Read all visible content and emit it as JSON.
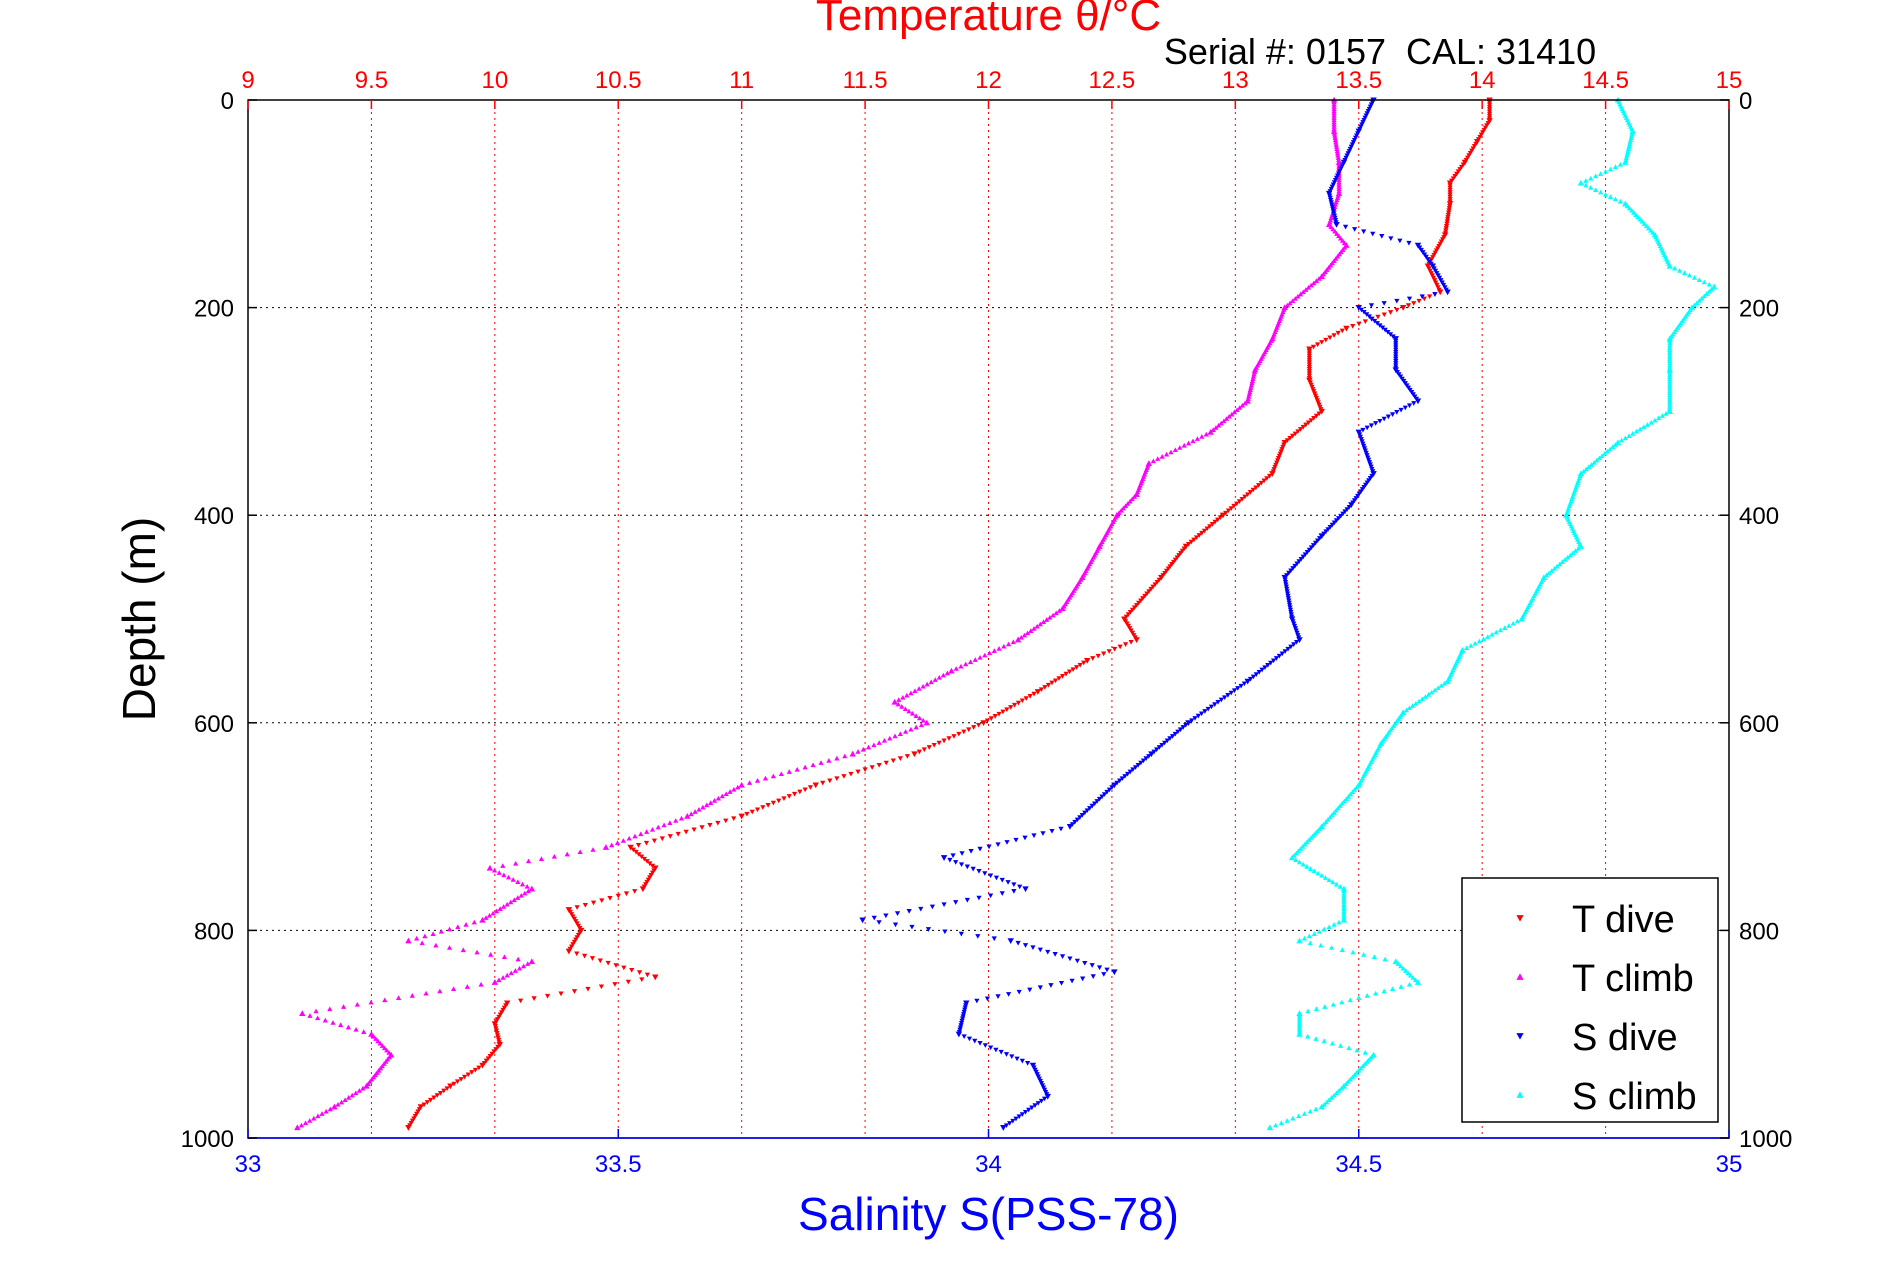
{
  "chart_data": {
    "type": "scatter",
    "title": "Temperature θ/°C",
    "subtitle": "Serial #: 0157  CAL: 31410",
    "xlabel": "Salinity S(PSS-78)",
    "ylabel": "Depth (m)",
    "colors": {
      "temperature_axis": "#ff0000",
      "salinity_axis": "#0000ff",
      "t_dive": "#ff0000",
      "t_climb": "#ff00ff",
      "s_dive": "#0000ff",
      "s_climb": "#00ffff"
    },
    "axes": {
      "temperature": {
        "range": [
          9,
          15
        ],
        "ticks": [
          9,
          9.5,
          10,
          10.5,
          11,
          11.5,
          12,
          12.5,
          13,
          13.5,
          14,
          14.5,
          15
        ],
        "tick_labels": [
          "9",
          "9.5",
          "10",
          "10.5",
          "11",
          "11.5",
          "12",
          "12.5",
          "13",
          "13.5",
          "14",
          "14.5",
          "15"
        ]
      },
      "salinity": {
        "range": [
          33,
          35
        ],
        "ticks": [
          33,
          33.5,
          34,
          34.5,
          35
        ],
        "tick_labels": [
          "33",
          "33.5",
          "34",
          "34.5",
          "35"
        ]
      },
      "depth": {
        "range": [
          0,
          1000
        ],
        "reversed": true,
        "ticks": [
          0,
          200,
          400,
          600,
          800,
          1000
        ],
        "tick_labels": [
          "0",
          "200",
          "400",
          "600",
          "800",
          "1000"
        ]
      }
    },
    "grid": true,
    "legend": {
      "placement": "bottom-right",
      "entries": [
        "T dive",
        "T climb",
        "S dive",
        "S climb"
      ]
    },
    "series": [
      {
        "name": "T dive",
        "axis": "temperature",
        "marker": "triangle-down",
        "depth": [
          0,
          20,
          40,
          60,
          80,
          100,
          130,
          160,
          185,
          200,
          220,
          240,
          270,
          300,
          330,
          360,
          400,
          430,
          460,
          500,
          520,
          540,
          570,
          600,
          630,
          660,
          690,
          720,
          740,
          760,
          780,
          800,
          820,
          845,
          870,
          890,
          910,
          930,
          950,
          970,
          990
        ],
        "values": [
          14.03,
          14.03,
          13.98,
          13.93,
          13.87,
          13.87,
          13.85,
          13.78,
          13.83,
          13.68,
          13.45,
          13.3,
          13.3,
          13.35,
          13.2,
          13.15,
          12.95,
          12.8,
          12.7,
          12.55,
          12.6,
          12.4,
          12.2,
          11.98,
          11.7,
          11.3,
          11.0,
          10.55,
          10.65,
          10.6,
          10.3,
          10.35,
          10.3,
          10.65,
          10.05,
          10.0,
          10.02,
          9.95,
          9.82,
          9.7,
          9.65
        ]
      },
      {
        "name": "T climb",
        "axis": "temperature",
        "marker": "triangle-up",
        "depth": [
          0,
          30,
          60,
          90,
          120,
          140,
          170,
          200,
          230,
          260,
          290,
          320,
          350,
          380,
          400,
          430,
          460,
          490,
          520,
          550,
          580,
          600,
          630,
          660,
          690,
          720,
          740,
          760,
          790,
          810,
          830,
          850,
          880,
          900,
          920,
          950,
          970,
          990
        ],
        "values": [
          13.4,
          13.4,
          13.42,
          13.42,
          13.38,
          13.45,
          13.35,
          13.2,
          13.15,
          13.08,
          13.05,
          12.9,
          12.65,
          12.6,
          12.52,
          12.45,
          12.38,
          12.3,
          12.12,
          11.85,
          11.62,
          11.75,
          11.45,
          11.0,
          10.78,
          10.45,
          9.98,
          10.15,
          9.95,
          9.65,
          10.15,
          10.0,
          9.22,
          9.5,
          9.58,
          9.48,
          9.35,
          9.2
        ]
      },
      {
        "name": "S dive",
        "axis": "salinity",
        "marker": "triangle-down",
        "depth": [
          0,
          30,
          60,
          90,
          120,
          140,
          160,
          185,
          200,
          230,
          260,
          290,
          320,
          360,
          390,
          420,
          460,
          500,
          520,
          560,
          600,
          630,
          660,
          700,
          730,
          760,
          790,
          810,
          840,
          870,
          900,
          930,
          960,
          990
        ],
        "values": [
          34.52,
          34.5,
          34.48,
          34.46,
          34.47,
          34.58,
          34.6,
          34.62,
          34.5,
          34.55,
          34.55,
          34.58,
          34.5,
          34.52,
          34.49,
          34.45,
          34.4,
          34.41,
          34.42,
          34.35,
          34.27,
          34.22,
          34.17,
          34.11,
          33.94,
          34.05,
          33.83,
          34.03,
          34.17,
          33.97,
          33.96,
          34.06,
          34.08,
          34.02
        ]
      },
      {
        "name": "S climb",
        "axis": "salinity",
        "marker": "triangle-up",
        "depth": [
          0,
          30,
          60,
          80,
          100,
          130,
          160,
          180,
          200,
          230,
          260,
          300,
          330,
          360,
          400,
          430,
          460,
          500,
          530,
          560,
          590,
          620,
          660,
          700,
          730,
          760,
          790,
          810,
          830,
          850,
          880,
          900,
          920,
          950,
          970,
          990
        ],
        "values": [
          34.85,
          34.87,
          34.86,
          34.8,
          34.86,
          34.9,
          34.92,
          34.98,
          34.95,
          34.92,
          34.92,
          34.92,
          34.85,
          34.8,
          34.78,
          34.8,
          34.75,
          34.72,
          34.64,
          34.62,
          34.56,
          34.53,
          34.5,
          34.45,
          34.41,
          34.48,
          34.48,
          34.42,
          34.55,
          34.58,
          34.42,
          34.42,
          34.52,
          34.48,
          34.45,
          34.38
        ]
      }
    ]
  }
}
